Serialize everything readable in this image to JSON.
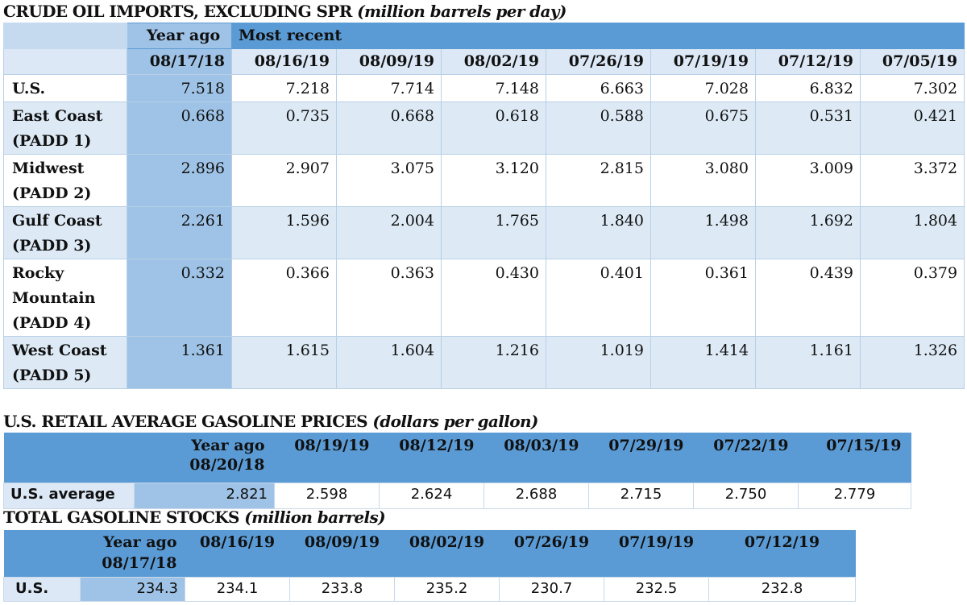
{
  "crude": {
    "title": "CRUDE OIL IMPORTS, EXCLUDING SPR",
    "unit": "(million barrels per day)",
    "year_ago_label": "Year ago",
    "most_recent_label": "Most recent",
    "dates": [
      "08/17/18",
      "08/16/19",
      "08/09/19",
      "08/02/19",
      "07/26/19",
      "07/19/19",
      "07/12/19",
      "07/05/19"
    ],
    "rows": [
      {
        "label_lines": [
          "U.S."
        ],
        "values": [
          "7.518",
          "7.218",
          "7.714",
          "7.148",
          "6.663",
          "7.028",
          "6.832",
          "7.302"
        ]
      },
      {
        "label_lines": [
          "East Coast",
          "(PADD 1)"
        ],
        "values": [
          "0.668",
          "0.735",
          "0.668",
          "0.618",
          "0.588",
          "0.675",
          "0.531",
          "0.421"
        ]
      },
      {
        "label_lines": [
          "Midwest",
          "(PADD 2)"
        ],
        "values": [
          "2.896",
          "2.907",
          "3.075",
          "3.120",
          "2.815",
          "3.080",
          "3.009",
          "3.372"
        ]
      },
      {
        "label_lines": [
          "Gulf Coast",
          "(PADD 3)"
        ],
        "values": [
          "2.261",
          "1.596",
          "2.004",
          "1.765",
          "1.840",
          "1.498",
          "1.692",
          "1.804"
        ]
      },
      {
        "label_lines": [
          "Rocky",
          "Mountain",
          "(PADD 4)"
        ],
        "values": [
          "0.332",
          "0.366",
          "0.363",
          "0.430",
          "0.401",
          "0.361",
          "0.439",
          "0.379"
        ]
      },
      {
        "label_lines": [
          "West Coast",
          "(PADD 5)"
        ],
        "values": [
          "1.361",
          "1.615",
          "1.604",
          "1.216",
          "1.019",
          "1.414",
          "1.161",
          "1.326"
        ]
      }
    ]
  },
  "gasoline_prices": {
    "title": "U.S. RETAIL AVERAGE GASOLINE PRICES",
    "unit": "(dollars per gallon)",
    "year_ago_label": "Year ago",
    "year_ago_date": "08/20/18",
    "dates": [
      "08/19/19",
      "08/12/19",
      "08/03/19",
      "07/29/19",
      "07/22/19",
      "07/15/19"
    ],
    "row_label": "U.S. average",
    "year_ago_value": "2.821",
    "values": [
      "2.598",
      "2.624",
      "2.688",
      "2.715",
      "2.750",
      "2.779"
    ]
  },
  "gasoline_stocks": {
    "title": "TOTAL GASOLINE STOCKS",
    "unit": "(million barrels)",
    "year_ago_label": "Year ago",
    "year_ago_date": "08/17/18",
    "dates": [
      "08/16/19",
      "08/09/19",
      "08/02/19",
      "07/26/19",
      "07/19/19",
      "07/12/19"
    ],
    "row_label": "U.S.",
    "year_ago_value": "234.3",
    "values": [
      "234.1",
      "233.8",
      "235.2",
      "230.7",
      "232.5",
      "232.8"
    ]
  }
}
